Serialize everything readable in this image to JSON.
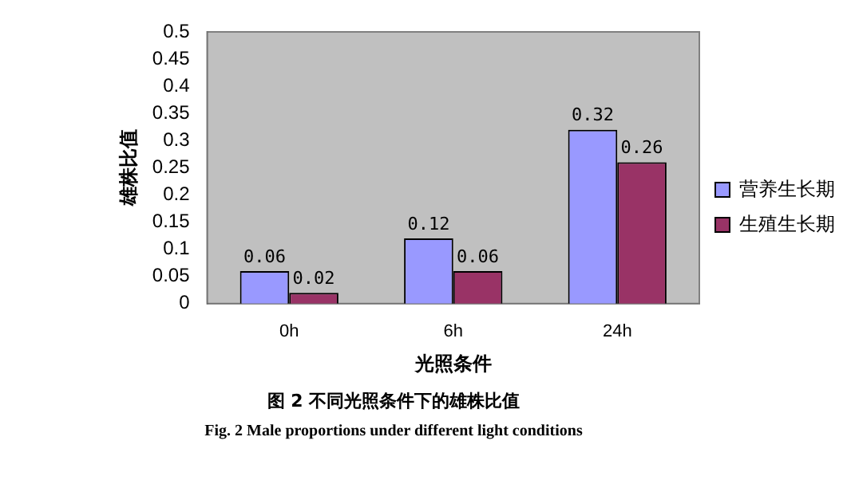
{
  "chart_data": {
    "type": "bar",
    "categories": [
      "0h",
      "6h",
      "24h"
    ],
    "series": [
      {
        "name": "营养生长期",
        "color": "#9999ff",
        "values": [
          0.06,
          0.12,
          0.32
        ]
      },
      {
        "name": "生殖生长期",
        "color": "#993366",
        "values": [
          0.02,
          0.06,
          0.26
        ]
      }
    ],
    "xlabel": "光照条件",
    "ylabel": "雄株比值",
    "ylim": [
      0,
      0.5
    ],
    "yticks": [
      0,
      0.05,
      0.1,
      0.15,
      0.2,
      0.25,
      0.3,
      0.35,
      0.4,
      0.45,
      0.5
    ],
    "grid": false,
    "legend": "right",
    "data_labels": true,
    "annotations": [
      "图 2  不同光照条件下的雄株比值",
      "Fig. 2  Male proportions under different light conditions"
    ]
  }
}
